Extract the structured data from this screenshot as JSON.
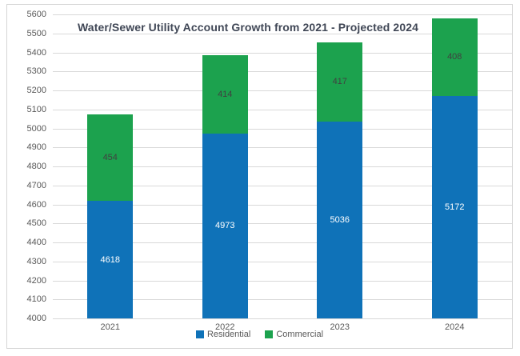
{
  "chart_data": {
    "type": "bar",
    "stacked": true,
    "title": "Water/Sewer Utility Account Growth from 2021 - Projected 2024",
    "categories": [
      "2021",
      "2022",
      "2023",
      "2024"
    ],
    "series": [
      {
        "name": "Residential",
        "color": "#0f72b8",
        "label_color": "#ffffff",
        "values": [
          4618,
          4973,
          5036,
          5172
        ]
      },
      {
        "name": "Commercial",
        "color": "#1ca24e",
        "label_color": "#404040",
        "values": [
          454,
          414,
          417,
          408
        ]
      }
    ],
    "ylim": [
      4000,
      5600
    ],
    "ytick_step": 100,
    "grid": true,
    "legend_position": "bottom",
    "xlabel": "",
    "ylabel": ""
  },
  "legend": {
    "items": [
      {
        "label": "Residential",
        "color": "#0f72b8"
      },
      {
        "label": "Commercial",
        "color": "#1ca24e"
      }
    ]
  },
  "colors": {
    "gridline": "#d9d9d9",
    "frame_border": "#d6d6d6",
    "axis_text": "#595959",
    "title_text": "#404756",
    "background": "#ffffff"
  }
}
